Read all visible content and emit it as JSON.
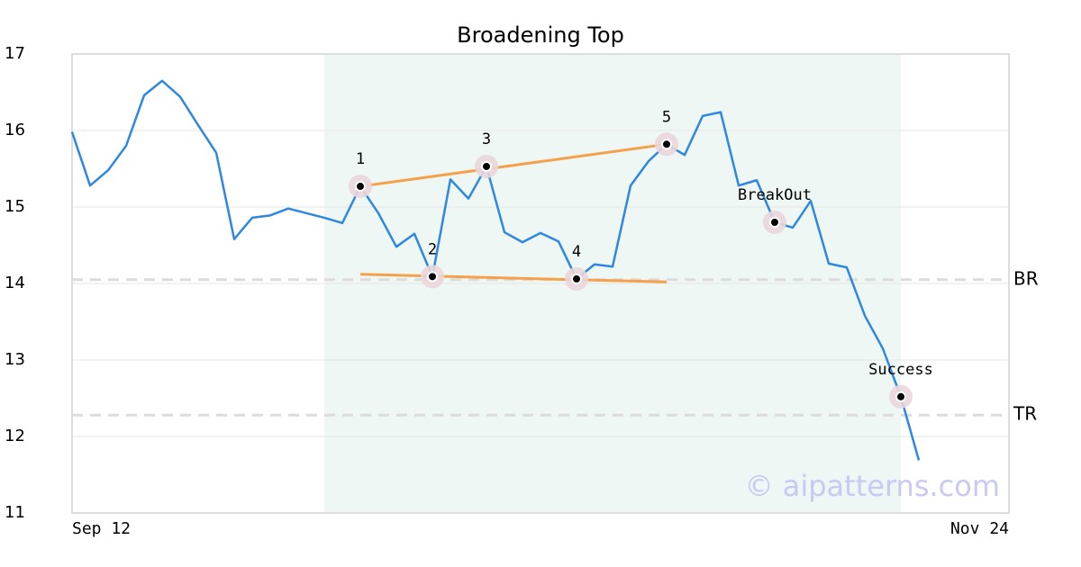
{
  "chart_data": {
    "type": "line",
    "title": "Broadening Top",
    "x": [
      0,
      1,
      2,
      3,
      4,
      5,
      6,
      7,
      8,
      9,
      10,
      11,
      12,
      13,
      14,
      15,
      16,
      17,
      18,
      19,
      20,
      21,
      22,
      23,
      24,
      25,
      26,
      27,
      28,
      29,
      30,
      31,
      32,
      33,
      34,
      35,
      36,
      37,
      38,
      39,
      40,
      41,
      42,
      43,
      44,
      45,
      46,
      47
    ],
    "values": [
      15.98,
      15.28,
      15.48,
      15.8,
      16.46,
      16.65,
      16.44,
      16.07,
      15.71,
      14.58,
      14.86,
      14.89,
      14.98,
      14.92,
      14.86,
      14.79,
      15.27,
      14.92,
      14.48,
      14.65,
      14.09,
      15.36,
      15.11,
      15.53,
      14.67,
      14.54,
      14.66,
      14.55,
      14.06,
      14.25,
      14.22,
      15.28,
      15.6,
      15.82,
      15.68,
      16.19,
      16.24,
      15.28,
      15.35,
      14.8,
      14.73,
      15.08,
      14.26,
      14.21,
      13.58,
      13.15,
      12.52,
      11.69
    ],
    "color": "#2f87e0",
    "xlim": [
      0,
      52
    ],
    "xticks": [
      {
        "value": 0,
        "label": "Sep 12"
      },
      {
        "value": 52,
        "label": "Nov 24"
      }
    ],
    "ylim": [
      11,
      17
    ],
    "yticks": [
      11,
      12,
      13,
      14,
      15,
      16,
      17
    ],
    "grid": true,
    "shaded_x": [
      14,
      46
    ],
    "shade_color": "#eef7f3",
    "trendline_color": "#f5a04a",
    "trendlines": [
      {
        "x": [
          16,
          33
        ],
        "y": [
          15.27,
          15.82
        ]
      },
      {
        "x": [
          16,
          33
        ],
        "y": [
          14.12,
          14.02
        ]
      }
    ],
    "levels": [
      {
        "label": "BR",
        "value": 14.05
      },
      {
        "label": "TR",
        "value": 12.28
      }
    ],
    "points": [
      {
        "label": "1",
        "x": 16,
        "y": 15.27
      },
      {
        "label": "2",
        "x": 20,
        "y": 14.09
      },
      {
        "label": "3",
        "x": 23,
        "y": 15.53
      },
      {
        "label": "4",
        "x": 28,
        "y": 14.06
      },
      {
        "label": "5",
        "x": 33,
        "y": 15.82
      },
      {
        "label": "BreakOut",
        "x": 39,
        "y": 14.8
      },
      {
        "label": "Success",
        "x": 46,
        "y": 12.52
      }
    ],
    "watermark": "© aipatterns.com"
  }
}
